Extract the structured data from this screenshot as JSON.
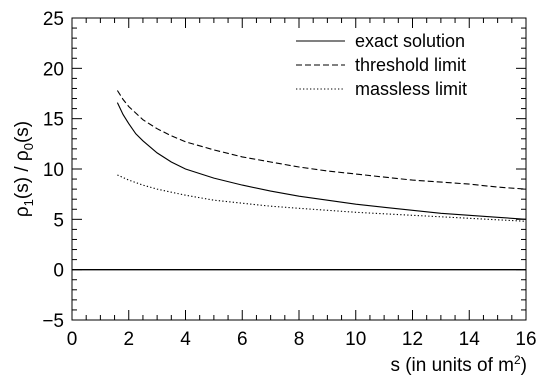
{
  "chart_data": {
    "type": "line",
    "xlabel": "s (in units of m",
    "xlabel_sup": "2",
    "xlabel_close": ")",
    "ylabel": {
      "rho1": "ρ",
      "sub1": "1",
      "mid": "(s) / ρ",
      "sub0": "0",
      "end": "(s)"
    },
    "xlim": [
      0,
      16
    ],
    "ylim": [
      -5,
      25
    ],
    "xticks": [
      "0",
      "2",
      "4",
      "6",
      "8",
      "10",
      "12",
      "14",
      "16"
    ],
    "yticks": [
      "-5",
      "0",
      "5",
      "10",
      "15",
      "20",
      "25"
    ],
    "grid": false,
    "legend_position": "top-right",
    "reference_line": {
      "y": 0
    },
    "series": [
      {
        "name": "exact solution",
        "style": "solid",
        "x": [
          1.6,
          1.8,
          2.0,
          2.25,
          2.5,
          3.0,
          3.5,
          4.0,
          5.0,
          6.0,
          7.0,
          8.0,
          9.0,
          10.0,
          11.0,
          12.0,
          13.0,
          14.0,
          15.0,
          16.0
        ],
        "y": [
          16.6,
          15.4,
          14.5,
          13.5,
          12.8,
          11.6,
          10.7,
          10.0,
          9.1,
          8.4,
          7.8,
          7.3,
          6.9,
          6.5,
          6.2,
          5.9,
          5.6,
          5.4,
          5.2,
          5.0
        ]
      },
      {
        "name": "threshold limit",
        "style": "dashed",
        "x": [
          1.6,
          1.8,
          2.0,
          2.5,
          3.0,
          3.5,
          4.0,
          5.0,
          6.0,
          7.0,
          8.0,
          9.0,
          10.0,
          11.0,
          12.0,
          13.0,
          14.0,
          15.0,
          16.0
        ],
        "y": [
          17.8,
          16.9,
          16.2,
          14.9,
          14.0,
          13.3,
          12.7,
          11.9,
          11.2,
          10.7,
          10.2,
          9.8,
          9.5,
          9.2,
          8.9,
          8.7,
          8.5,
          8.2,
          8.0
        ]
      },
      {
        "name": "massless limit",
        "style": "dotted",
        "x": [
          1.6,
          2.0,
          2.5,
          3.0,
          3.5,
          4.0,
          5.0,
          6.0,
          7.0,
          8.0,
          9.0,
          10.0,
          11.0,
          12.0,
          13.0,
          14.0,
          15.0,
          16.0
        ],
        "y": [
          9.4,
          8.9,
          8.4,
          8.0,
          7.7,
          7.4,
          6.9,
          6.6,
          6.3,
          6.1,
          5.9,
          5.7,
          5.55,
          5.4,
          5.25,
          5.1,
          4.95,
          4.8
        ]
      }
    ]
  }
}
